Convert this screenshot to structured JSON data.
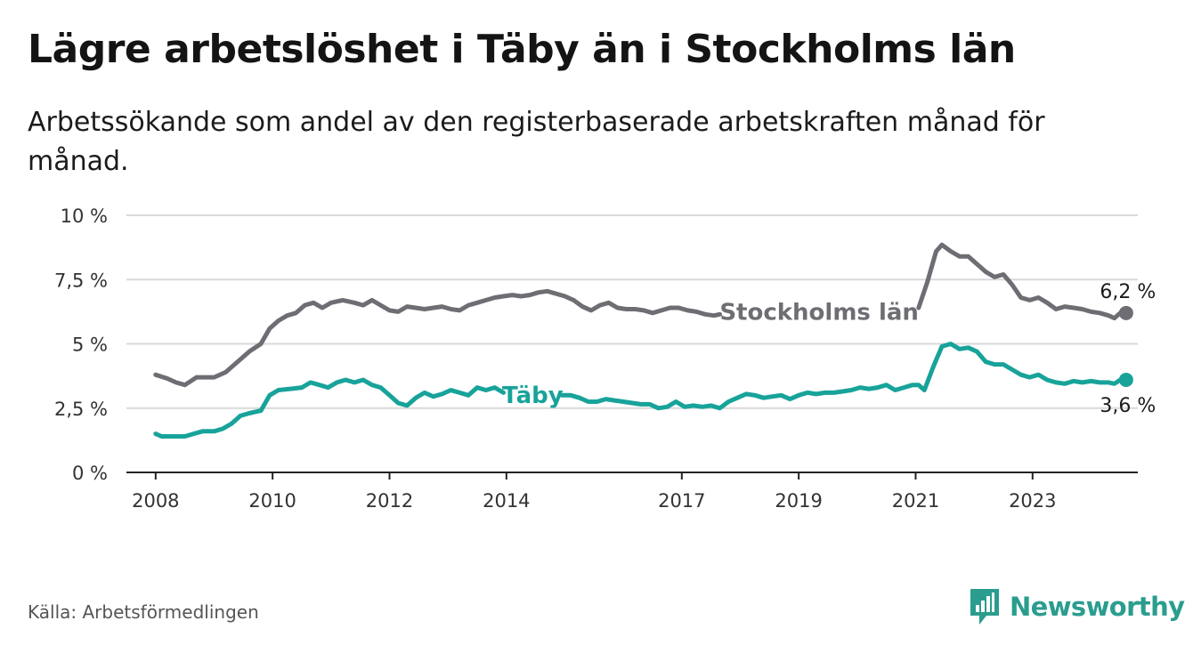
{
  "title": "Lägre arbetslöshet i Täby än i Stockholms län",
  "subtitle": "Arbetssökande som andel av den registerbaserade arbetskraften månad för månad.",
  "source": "Källa: Arbetsförmedlingen",
  "brand": "Newsworthy",
  "colors": {
    "stockholm": "#6e6d73",
    "taby": "#18a39a",
    "grid": "#d9d9d9",
    "axis": "#222222",
    "brand": "#2a9d8f"
  },
  "chart_data": {
    "type": "line",
    "title": "Lägre arbetslöshet i Täby än i Stockholms län",
    "ylabel": "",
    "xlabel": "",
    "ylim": [
      0,
      10
    ],
    "xlim": [
      2007.5,
      2024.8
    ],
    "yticks": [
      0,
      2.5,
      5,
      7.5,
      10
    ],
    "ytick_labels": [
      "0 %",
      "2,5 %",
      "5 %",
      "7,5 %",
      "10 %"
    ],
    "xticks": [
      2008,
      2010,
      2012,
      2014,
      2017,
      2019,
      2021,
      2023
    ],
    "xtick_labels": [
      "2008",
      "2010",
      "2012",
      "2014",
      "2017",
      "2019",
      "2021",
      "2023"
    ],
    "grid": true,
    "series": [
      {
        "name": "Stockholms län",
        "label": "Stockholms län",
        "end_label": "6,2 %",
        "end_value": 6.2,
        "points": [
          [
            2008.0,
            3.8
          ],
          [
            2008.2,
            3.65
          ],
          [
            2008.35,
            3.5
          ],
          [
            2008.5,
            3.4
          ],
          [
            2008.6,
            3.55
          ],
          [
            2008.7,
            3.7
          ],
          [
            2008.85,
            3.7
          ],
          [
            2009.0,
            3.7
          ],
          [
            2009.2,
            3.9
          ],
          [
            2009.4,
            4.3
          ],
          [
            2009.6,
            4.7
          ],
          [
            2009.8,
            5.0
          ],
          [
            2009.95,
            5.6
          ],
          [
            2010.1,
            5.9
          ],
          [
            2010.25,
            6.1
          ],
          [
            2010.4,
            6.2
          ],
          [
            2010.55,
            6.5
          ],
          [
            2010.7,
            6.6
          ],
          [
            2010.85,
            6.4
          ],
          [
            2011.0,
            6.6
          ],
          [
            2011.2,
            6.7
          ],
          [
            2011.4,
            6.6
          ],
          [
            2011.55,
            6.5
          ],
          [
            2011.7,
            6.7
          ],
          [
            2011.85,
            6.5
          ],
          [
            2012.0,
            6.3
          ],
          [
            2012.15,
            6.25
          ],
          [
            2012.3,
            6.45
          ],
          [
            2012.45,
            6.4
          ],
          [
            2012.6,
            6.35
          ],
          [
            2012.75,
            6.4
          ],
          [
            2012.9,
            6.45
          ],
          [
            2013.05,
            6.35
          ],
          [
            2013.2,
            6.3
          ],
          [
            2013.35,
            6.5
          ],
          [
            2013.5,
            6.6
          ],
          [
            2013.65,
            6.7
          ],
          [
            2013.8,
            6.8
          ],
          [
            2013.95,
            6.85
          ],
          [
            2014.1,
            6.9
          ],
          [
            2014.25,
            6.85
          ],
          [
            2014.4,
            6.9
          ],
          [
            2014.55,
            7.0
          ],
          [
            2014.7,
            7.05
          ],
          [
            2014.85,
            6.95
          ],
          [
            2015.0,
            6.85
          ],
          [
            2015.15,
            6.7
          ],
          [
            2015.3,
            6.45
          ],
          [
            2015.45,
            6.3
          ],
          [
            2015.6,
            6.5
          ],
          [
            2015.75,
            6.6
          ],
          [
            2015.9,
            6.4
          ],
          [
            2016.05,
            6.35
          ],
          [
            2016.2,
            6.35
          ],
          [
            2016.35,
            6.3
          ],
          [
            2016.5,
            6.2
          ],
          [
            2016.65,
            6.3
          ],
          [
            2016.8,
            6.4
          ],
          [
            2016.95,
            6.4
          ],
          [
            2017.1,
            6.3
          ],
          [
            2017.25,
            6.25
          ],
          [
            2017.4,
            6.15
          ],
          [
            2017.55,
            6.1
          ],
          [
            2017.65,
            6.15
          ]
        ],
        "points_after_label": [
          [
            2021.05,
            6.4
          ],
          [
            2021.2,
            7.4
          ],
          [
            2021.35,
            8.6
          ],
          [
            2021.45,
            8.85
          ],
          [
            2021.6,
            8.6
          ],
          [
            2021.75,
            8.4
          ],
          [
            2021.9,
            8.4
          ],
          [
            2022.05,
            8.1
          ],
          [
            2022.2,
            7.8
          ],
          [
            2022.35,
            7.6
          ],
          [
            2022.5,
            7.7
          ],
          [
            2022.65,
            7.3
          ],
          [
            2022.8,
            6.8
          ],
          [
            2022.95,
            6.7
          ],
          [
            2023.1,
            6.8
          ],
          [
            2023.25,
            6.6
          ],
          [
            2023.4,
            6.35
          ],
          [
            2023.55,
            6.45
          ],
          [
            2023.7,
            6.4
          ],
          [
            2023.85,
            6.35
          ],
          [
            2024.0,
            6.25
          ],
          [
            2024.15,
            6.2
          ],
          [
            2024.3,
            6.1
          ],
          [
            2024.4,
            6.0
          ],
          [
            2024.5,
            6.2
          ],
          [
            2024.6,
            6.2
          ]
        ]
      },
      {
        "name": "Täby",
        "label": "Täby",
        "end_label": "3,6 %",
        "end_value": 3.6,
        "points": [
          [
            2008.0,
            1.5
          ],
          [
            2008.1,
            1.4
          ],
          [
            2008.3,
            1.4
          ],
          [
            2008.5,
            1.4
          ],
          [
            2008.65,
            1.5
          ],
          [
            2008.8,
            1.6
          ],
          [
            2009.0,
            1.6
          ],
          [
            2009.15,
            1.7
          ],
          [
            2009.3,
            1.9
          ],
          [
            2009.45,
            2.2
          ],
          [
            2009.6,
            2.3
          ],
          [
            2009.8,
            2.4
          ],
          [
            2009.95,
            3.0
          ],
          [
            2010.1,
            3.2
          ],
          [
            2010.3,
            3.25
          ],
          [
            2010.5,
            3.3
          ],
          [
            2010.65,
            3.5
          ],
          [
            2010.8,
            3.4
          ],
          [
            2010.95,
            3.3
          ],
          [
            2011.1,
            3.5
          ],
          [
            2011.25,
            3.6
          ],
          [
            2011.4,
            3.5
          ],
          [
            2011.55,
            3.6
          ],
          [
            2011.7,
            3.4
          ],
          [
            2011.85,
            3.3
          ],
          [
            2012.0,
            3.0
          ],
          [
            2012.15,
            2.7
          ],
          [
            2012.3,
            2.6
          ],
          [
            2012.45,
            2.9
          ],
          [
            2012.6,
            3.1
          ],
          [
            2012.75,
            2.95
          ],
          [
            2012.9,
            3.05
          ],
          [
            2013.05,
            3.2
          ],
          [
            2013.2,
            3.1
          ],
          [
            2013.35,
            3.0
          ],
          [
            2013.5,
            3.3
          ],
          [
            2013.65,
            3.2
          ],
          [
            2013.8,
            3.3
          ],
          [
            2013.95,
            3.1
          ]
        ],
        "points_after_label": [
          [
            2014.95,
            3.0
          ],
          [
            2015.1,
            3.0
          ],
          [
            2015.25,
            2.9
          ],
          [
            2015.4,
            2.75
          ],
          [
            2015.55,
            2.75
          ],
          [
            2015.7,
            2.85
          ],
          [
            2015.85,
            2.8
          ],
          [
            2016.0,
            2.75
          ],
          [
            2016.15,
            2.7
          ],
          [
            2016.3,
            2.65
          ],
          [
            2016.45,
            2.65
          ],
          [
            2016.6,
            2.5
          ],
          [
            2016.75,
            2.55
          ],
          [
            2016.9,
            2.75
          ],
          [
            2017.05,
            2.55
          ],
          [
            2017.2,
            2.6
          ],
          [
            2017.35,
            2.55
          ],
          [
            2017.5,
            2.6
          ],
          [
            2017.65,
            2.5
          ],
          [
            2017.8,
            2.75
          ],
          [
            2017.95,
            2.9
          ],
          [
            2018.1,
            3.05
          ],
          [
            2018.25,
            3.0
          ],
          [
            2018.4,
            2.9
          ],
          [
            2018.55,
            2.95
          ],
          [
            2018.7,
            3.0
          ],
          [
            2018.85,
            2.85
          ],
          [
            2019.0,
            3.0
          ],
          [
            2019.15,
            3.1
          ],
          [
            2019.3,
            3.05
          ],
          [
            2019.45,
            3.1
          ],
          [
            2019.6,
            3.1
          ],
          [
            2019.75,
            3.15
          ],
          [
            2019.9,
            3.2
          ],
          [
            2020.05,
            3.3
          ],
          [
            2020.2,
            3.25
          ],
          [
            2020.35,
            3.3
          ],
          [
            2020.5,
            3.4
          ],
          [
            2020.65,
            3.2
          ],
          [
            2020.8,
            3.3
          ],
          [
            2020.95,
            3.4
          ],
          [
            2021.05,
            3.4
          ],
          [
            2021.15,
            3.2
          ],
          [
            2021.3,
            4.1
          ],
          [
            2021.45,
            4.9
          ],
          [
            2021.6,
            5.0
          ],
          [
            2021.75,
            4.8
          ],
          [
            2021.9,
            4.85
          ],
          [
            2022.05,
            4.7
          ],
          [
            2022.2,
            4.3
          ],
          [
            2022.35,
            4.2
          ],
          [
            2022.5,
            4.2
          ],
          [
            2022.65,
            4.0
          ],
          [
            2022.8,
            3.8
          ],
          [
            2022.95,
            3.7
          ],
          [
            2023.1,
            3.8
          ],
          [
            2023.25,
            3.6
          ],
          [
            2023.4,
            3.5
          ],
          [
            2023.55,
            3.45
          ],
          [
            2023.7,
            3.55
          ],
          [
            2023.85,
            3.5
          ],
          [
            2024.0,
            3.55
          ],
          [
            2024.15,
            3.5
          ],
          [
            2024.3,
            3.5
          ],
          [
            2024.4,
            3.45
          ],
          [
            2024.5,
            3.6
          ],
          [
            2024.6,
            3.6
          ]
        ]
      }
    ]
  }
}
